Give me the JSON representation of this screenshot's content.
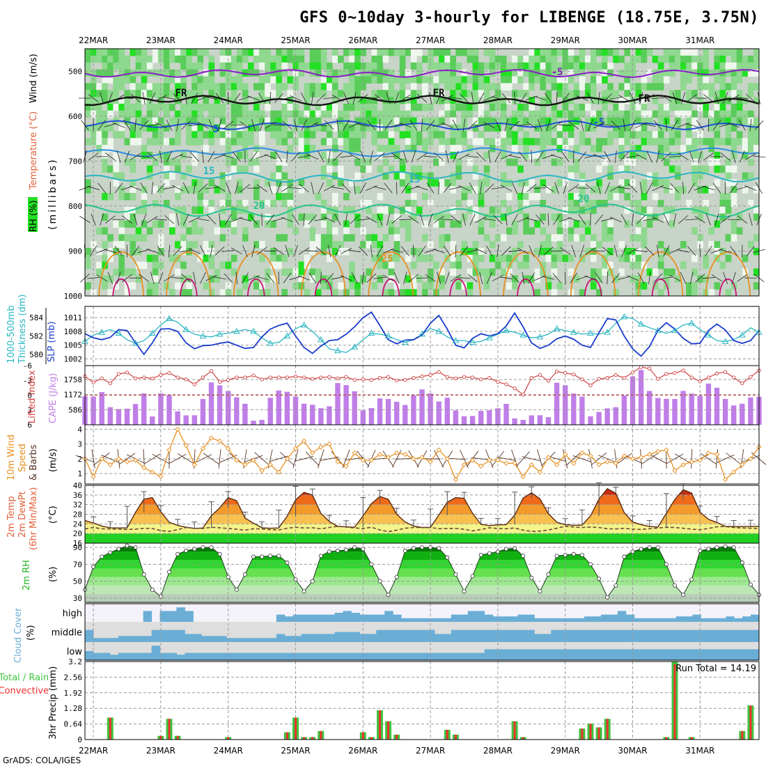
{
  "title": "GFS 0~10day 3-hourly for LIBENGE (18.75E, 3.75N)",
  "credit": "GrADS: COLA/IGES",
  "date_labels": [
    "22MAR",
    "23MAR",
    "24MAR",
    "25MAR",
    "26MAR",
    "27MAR",
    "28MAR",
    "29MAR",
    "30MAR",
    "31MAR"
  ],
  "colors": {
    "rh_fill": [
      "#c8d4c8",
      "#eef6ee",
      "#8fd88f",
      "#5acc5a",
      "#22e022",
      "#00b400"
    ],
    "thickness": "#2ab6c2",
    "slp": "#1a3ccc",
    "lifted_index": "#d04040",
    "cape": "#c07ee8",
    "wind_speed": "#e89020",
    "barb": "#553322",
    "rh2m_points": "#ffffff",
    "cloud": "#6aaed6",
    "cloud_bg_high": "#f4f2fa",
    "cloud_bg_low": "#dedede",
    "precip_total": "#3ec43e",
    "precip_conv": "#ee3030"
  },
  "panels": {
    "upper_air": {
      "ylabel_rh": "RH (%)",
      "ylabel_temp": "Temperature (°C)",
      "ylabel_wind": "Wind (m/s)",
      "ylabel_units": "(millibars)",
      "yticks": [
        "500",
        "600",
        "700",
        "800",
        "900",
        "1000"
      ],
      "isotherm_labels": [
        "-5",
        "FR",
        "FR",
        "FR",
        "-5",
        "5",
        "5",
        "15",
        "15",
        "20",
        "20",
        "25"
      ]
    },
    "thickness_slp": {
      "ylabel_left": "1000-500mb",
      "ylabel_left2": "Thickness (dm)",
      "ylabel_right": "SLP (mb)",
      "yticks_thickness": [
        "584",
        "582",
        "580"
      ],
      "yticks_slp": [
        "1011",
        "1008",
        "1005",
        "1002"
      ]
    },
    "li_cape": {
      "ylabel_li": "Lifted Index",
      "ylabel_cape": "CAPE (J/kg)",
      "yticks_li": [
        "-6",
        "-3",
        "0",
        "3",
        "6"
      ],
      "yticks_cape": [
        "1758",
        "1172",
        "586"
      ]
    },
    "wind10m": {
      "ylabel1": "10m Wind",
      "ylabel2": "Speed",
      "ylabel3": "& Barbs",
      "units": "(m/s)",
      "yticks": [
        "4",
        "3",
        "2",
        "1"
      ]
    },
    "temp2m": {
      "ylabel1": "2m Temp",
      "ylabel2": "2m DewPt",
      "ylabel3": "(6hr Min/Max)",
      "units": "(°C)",
      "yticks": [
        "40",
        "36",
        "32",
        "28",
        "24",
        "20",
        "16"
      ]
    },
    "rh2m": {
      "ylabel": "2m RH",
      "units": "(%)",
      "yticks": [
        "90",
        "70",
        "50",
        "30"
      ]
    },
    "cloud": {
      "ylabel": "Cloud Cover",
      "units": "(%)",
      "levels": [
        "high",
        "middle",
        "low"
      ]
    },
    "precip": {
      "ylabel1": "Total / Rain",
      "ylabel2": "Convective",
      "ylabel3": "3hr Precip (mm)",
      "yticks": [
        "3.2",
        "2.56",
        "1.92",
        "1.28",
        "0.64",
        "0"
      ],
      "run_total": "Run Total = 14.19"
    }
  },
  "chart_data": {
    "type": "line",
    "x_axis": "time (3-hourly, 81 steps from 21MAR 21Z)",
    "series": [
      {
        "panel": "thickness_slp",
        "values": [
          581.4,
          582.1,
          582.4,
          582.7,
          582.3,
          581.6,
          581.2,
          581.5,
          582.3,
          583.2,
          583.9,
          583.5,
          582.7,
          582.2,
          582.0,
          581.9,
          582.2,
          582.3,
          582.5,
          582.7,
          582.5,
          581.8,
          581.2,
          581.3,
          582.0,
          582.8,
          583.2,
          582.5,
          581.6,
          580.6,
          580.4,
          580.2,
          580.8,
          581.6,
          582.3,
          582.2,
          582.0,
          581.6,
          581.3,
          581.6,
          582.2,
          582.8,
          582.5,
          581.9,
          581.5,
          581.5,
          581.3,
          581.4,
          581.8,
          582.2,
          582.6,
          582.4,
          582.1,
          581.8,
          581.9,
          582.2,
          582.8,
          582.6,
          582.4,
          582.2,
          582.3,
          582.2,
          582.4,
          583.4,
          584.1,
          583.9,
          583.3,
          582.9,
          582.6,
          582.3,
          582.6,
          583.2,
          583.4,
          582.7,
          582.1,
          581.5,
          581.4,
          581.6,
          582.1,
          582.9,
          582.4
        ]
      },
      {
        "panel": "thickness_slp",
        "values": [
          1007.5,
          1006.6,
          1006.2,
          1006.7,
          1008.4,
          1008.2,
          1005.5,
          1003.0,
          1005.5,
          1008.5,
          1008.6,
          1008.0,
          1005.5,
          1004.2,
          1004.9,
          1005.0,
          1005.4,
          1005.7,
          1005.0,
          1004.3,
          1004.5,
          1006.8,
          1008.5,
          1009.3,
          1009.8,
          1007.0,
          1004.5,
          1003.2,
          1004.8,
          1006.0,
          1006.2,
          1007.4,
          1009.0,
          1011.0,
          1012.2,
          1009.3,
          1006.2,
          1005.3,
          1006.1,
          1006.2,
          1007.2,
          1009.8,
          1011.5,
          1008.5,
          1005.0,
          1004.4,
          1006.5,
          1007.5,
          1007.0,
          1007.5,
          1009.2,
          1012.0,
          1009.0,
          1005.5,
          1004.3,
          1005.0,
          1006.4,
          1007.0,
          1006.3,
          1005.0,
          1004.5,
          1007.7,
          1010.8,
          1010.5,
          1007.0,
          1004.2,
          1002.6,
          1004.7,
          1008.2,
          1009.9,
          1008.5,
          1006.5,
          1005.3,
          1005.4,
          1008.2,
          1009.6,
          1008.3,
          1006.0,
          1005.4,
          1006.0,
          1008.2
        ]
      },
      {
        "panel": "li_cape",
        "name": "Lifted Index",
        "values": [
          -3.8,
          -2.6,
          -3.4,
          -2.4,
          -4.3,
          -4.6,
          -3.4,
          -3.6,
          -3.4,
          -4.1,
          -4.5,
          -3.6,
          -3.2,
          -2.2,
          -3.6,
          -4.9,
          -2.7,
          -3.1,
          -3.6,
          -3.6,
          -4.0,
          -3.2,
          -3.6,
          -3.6,
          -3.6,
          -3.8,
          -3.6,
          -3.3,
          -3.6,
          -3.7,
          -3.4,
          -3.7,
          -3.1,
          -3.2,
          -3.1,
          -3.5,
          -3.7,
          -3.0,
          -3.1,
          -3.5,
          -3.8,
          -4.1,
          -4.7,
          -3.7,
          -3.4,
          -3.7,
          -3.6,
          -3.2,
          -3.5,
          -2.7,
          -2.2,
          -1.4,
          -0.1,
          -3.5,
          -4.1,
          -2.9,
          -4.8,
          -4.5,
          -4.2,
          -3.2,
          -2.0,
          -3.3,
          -3.5,
          -4.1,
          -3.5,
          -4.6,
          -5.7,
          -5.4,
          -3.3,
          -4.3,
          -4.5,
          -5.0,
          -3.6,
          -2.8,
          -3.6,
          -4.4,
          -4.7,
          -3.6,
          -2.4,
          -3.7,
          -5.0
        ]
      },
      {
        "panel": "li_cape",
        "name": "CAPE",
        "values": [
          1108,
          1091,
          1270,
          684,
          610,
          626,
          810,
          1223,
          323,
          1221,
          1158,
          522,
          365,
          371,
          1002,
          1645,
          1532,
          1310,
          1065,
          816,
          159,
          191,
          1048,
          1333,
          1284,
          1100,
          820,
          777,
          645,
          719,
          1621,
          1541,
          1301,
          562,
          651,
          1024,
          1000,
          896,
          770,
          1146,
          1374,
          1222,
          905,
          1053,
          559,
          332,
          342,
          540,
          565,
          641,
          813,
          247,
          191,
          365,
          371,
          296,
          1635,
          1536,
          1219,
          1093,
          331,
          498,
          639,
          684,
          1138,
          1881,
          2131,
          1315,
          1042,
          1009,
          1003,
          1314,
          1216,
          1128,
          1601,
          1439,
          1005,
          750,
          818,
          1062,
          1089
        ]
      },
      {
        "panel": "wind10m",
        "name": "10m Wind Speed",
        "values": [
          2.0,
          0.8,
          2.0,
          1.6,
          2.0,
          1.8,
          1.9,
          1.4,
          1.1,
          0.8,
          2.6,
          4.0,
          2.9,
          1.6,
          2.7,
          3.4,
          3.2,
          2.7,
          1.9,
          1.6,
          1.9,
          1.2,
          1.6,
          1.1,
          2.0,
          2.7,
          3.2,
          2.4,
          2.8,
          3.0,
          1.8,
          1.5,
          2.4,
          1.9,
          1.9,
          2.3,
          2.1,
          2.4,
          2.3,
          2.0,
          2.1,
          1.8,
          2.6,
          2.0,
          0.6,
          1.6,
          1.9,
          1.5,
          1.9,
          1.9,
          1.7,
          1.7,
          0.8,
          1.6,
          1.1,
          2.1,
          1.6,
          2.3,
          1.7,
          2.4,
          2.2,
          1.6,
          1.8,
          1.7,
          2.2,
          2.0,
          2.1,
          2.3,
          2.5,
          2.6,
          1.2,
          1.6,
          1.8,
          1.9,
          2.4,
          2.3,
          0.6,
          1.1,
          1.6,
          2.0,
          2.8
        ]
      },
      {
        "panel": "temp2m",
        "name": "2m Temp",
        "values": [
          25.4,
          24.4,
          23.1,
          22.4,
          22.3,
          22.4,
          28.8,
          34.3,
          34.9,
          29.1,
          24.7,
          23.4,
          22.6,
          22.1,
          22.3,
          27.4,
          30.7,
          34.9,
          33.6,
          26.4,
          24.3,
          22.4,
          22.2,
          22.3,
          27.2,
          34.0,
          37.1,
          36.0,
          28.4,
          25.0,
          23.0,
          22.8,
          22.6,
          27.3,
          32.4,
          35.4,
          34.2,
          28.0,
          24.8,
          23.1,
          22.5,
          22.5,
          27.7,
          33.0,
          34.9,
          34.6,
          28.4,
          23.8,
          23.3,
          23.6,
          23.7,
          27.6,
          34.7,
          36.9,
          34.4,
          28.2,
          24.7,
          23.7,
          23.4,
          23.5,
          27.3,
          34.3,
          38.6,
          36.7,
          28.7,
          24.8,
          23.7,
          22.9,
          22.7,
          28.4,
          34.1,
          38.2,
          36.8,
          28.9,
          25.9,
          24.6,
          23.0,
          22.9,
          22.9,
          22.9,
          23.0
        ]
      },
      {
        "panel": "temp2m",
        "name": "2m DewPt",
        "values": [
          21.9,
          22.5,
          22.0,
          21.9,
          21.8,
          21.7,
          21.8,
          22.2,
          22.1,
          21.2,
          20.9,
          21.6,
          22.5,
          22.2,
          22.1,
          22.6,
          22.4,
          22.1,
          21.8,
          21.4,
          22.0,
          21.9,
          21.6,
          21.5,
          22.2,
          22.6,
          22.3,
          22.4,
          22.0,
          22.5,
          23.0,
          22.7,
          22.3,
          22.1,
          22.6,
          21.5,
          20.8,
          21.4,
          22.2,
          22.5,
          22.5,
          22.5,
          22.0,
          22.1,
          22.1,
          21.8,
          21.1,
          21.7,
          22.4,
          22.1,
          22.0,
          22.3,
          21.4,
          20.9,
          21.0,
          21.5,
          22.2,
          23.0,
          22.7,
          22.5,
          22.7,
          22.5,
          22.0,
          21.9,
          22.2,
          21.8,
          21.7,
          22.0,
          22.3,
          22.6,
          22.5,
          22.2,
          21.8,
          21.6,
          22.1,
          22.8,
          22.9,
          22.5,
          22.3,
          22.2,
          22.1
        ]
      },
      {
        "panel": "rh2m",
        "name": "2m RH",
        "values": [
          40,
          67,
          79,
          84,
          88,
          92,
          90,
          58,
          40,
          32,
          61,
          82,
          86,
          88,
          90,
          90,
          82,
          55,
          40,
          58,
          79,
          79,
          80,
          80,
          72,
          52,
          38,
          50,
          80,
          85,
          86,
          87,
          90,
          88,
          70,
          50,
          34,
          55,
          86,
          89,
          90,
          90,
          89,
          78,
          58,
          38,
          56,
          81,
          83,
          85,
          88,
          89,
          80,
          54,
          38,
          58,
          80,
          81,
          82,
          81,
          70,
          53,
          31,
          45,
          79,
          85,
          88,
          90,
          90,
          70,
          45,
          34,
          52,
          86,
          88,
          90,
          91,
          90,
          72,
          46,
          34
        ]
      },
      {
        "panel": "precip",
        "name": "Total",
        "values": [
          0,
          0,
          0,
          0.9,
          0,
          0,
          0,
          0,
          0,
          0.15,
          0.85,
          0.15,
          0,
          0,
          0,
          0,
          0,
          0.1,
          0,
          0,
          0,
          0,
          0,
          0,
          0.3,
          0.9,
          0.1,
          0.1,
          0.35,
          0,
          0,
          0,
          0,
          0.3,
          0.1,
          1.2,
          0.75,
          0.2,
          0,
          0,
          0,
          0,
          0,
          0.4,
          0.2,
          0,
          0,
          0,
          0,
          0,
          0,
          0.75,
          0.1,
          0,
          0,
          0,
          0,
          0,
          0,
          0.45,
          0.65,
          0.5,
          0.85,
          0,
          0,
          0,
          0,
          0,
          0,
          0.1,
          3.2,
          0,
          0.1,
          0,
          0,
          0,
          0,
          0,
          0.35,
          1.4,
          0
        ]
      },
      {
        "panel": "precip",
        "name": "Convective",
        "values": [
          0,
          0,
          0,
          0.9,
          0,
          0,
          0,
          0,
          0,
          0.15,
          0.85,
          0.15,
          0,
          0,
          0,
          0,
          0,
          0.1,
          0,
          0,
          0,
          0,
          0,
          0,
          0.3,
          0.9,
          0.1,
          0.1,
          0.35,
          0,
          0,
          0,
          0,
          0.3,
          0.1,
          1.2,
          0.75,
          0.2,
          0,
          0,
          0,
          0,
          0,
          0.4,
          0.2,
          0,
          0,
          0,
          0,
          0,
          0,
          0.75,
          0.1,
          0,
          0,
          0,
          0,
          0,
          0,
          0.45,
          0.65,
          0.5,
          0.85,
          0,
          0,
          0,
          0,
          0,
          0,
          0.1,
          3.1,
          0,
          0.1,
          0,
          0,
          0,
          0,
          0,
          0.35,
          1.4,
          0
        ]
      }
    ],
    "cloud_high": [
      0,
      0,
      0,
      0,
      0,
      0,
      0,
      60,
      0,
      60,
      60,
      80,
      60,
      0,
      0,
      0,
      0,
      0,
      0,
      0,
      0,
      0,
      0,
      40,
      30,
      40,
      40,
      40,
      40,
      40,
      50,
      60,
      50,
      40,
      40,
      40,
      60,
      40,
      20,
      20,
      20,
      20,
      20,
      20,
      40,
      40,
      60,
      60,
      40,
      30,
      30,
      30,
      40,
      40,
      20,
      20,
      20,
      20,
      20,
      20,
      30,
      30,
      40,
      40,
      60,
      40,
      20,
      20,
      20,
      20,
      20,
      30,
      30,
      40,
      20,
      20,
      20,
      30,
      20,
      30,
      40
    ],
    "cloud_middle": [
      60,
      20,
      20,
      20,
      30,
      30,
      30,
      30,
      60,
      60,
      60,
      60,
      40,
      40,
      30,
      30,
      30,
      20,
      20,
      20,
      20,
      20,
      20,
      40,
      30,
      30,
      40,
      40,
      40,
      40,
      50,
      50,
      50,
      40,
      40,
      60,
      60,
      60,
      60,
      60,
      60,
      60,
      40,
      40,
      60,
      60,
      60,
      60,
      60,
      60,
      60,
      60,
      60,
      60,
      40,
      40,
      60,
      60,
      60,
      60,
      60,
      60,
      60,
      60,
      60,
      60,
      60,
      60,
      60,
      60,
      60,
      60,
      60,
      60,
      60,
      60,
      60,
      60,
      60,
      60,
      60
    ],
    "cloud_low": [
      50,
      40,
      40,
      30,
      40,
      40,
      40,
      40,
      80,
      40,
      40,
      30,
      40,
      40,
      40,
      40,
      40,
      40,
      40,
      40,
      40,
      40,
      40,
      40,
      40,
      40,
      40,
      40,
      40,
      40,
      40,
      40,
      40,
      40,
      40,
      40,
      40,
      40,
      40,
      40,
      40,
      40,
      40,
      40,
      40,
      40,
      40,
      40,
      60,
      60,
      60,
      60,
      60,
      60,
      60,
      60,
      60,
      60,
      60,
      60,
      60,
      60,
      60,
      60,
      60,
      60,
      60,
      60,
      60,
      60,
      60,
      60,
      60,
      60,
      60,
      60,
      60,
      60,
      60,
      60,
      60
    ],
    "temp_range": {
      "min": 16,
      "max": 40
    },
    "rh_range": {
      "min": 25,
      "max": 95
    },
    "precip_range": {
      "min": 0,
      "max": 3.2
    },
    "cape_range": {
      "min": 0,
      "max": 2300
    },
    "li_range": {
      "min": -6,
      "max": 6
    },
    "pressure_range": {
      "min": 450,
      "max": 1000
    }
  }
}
